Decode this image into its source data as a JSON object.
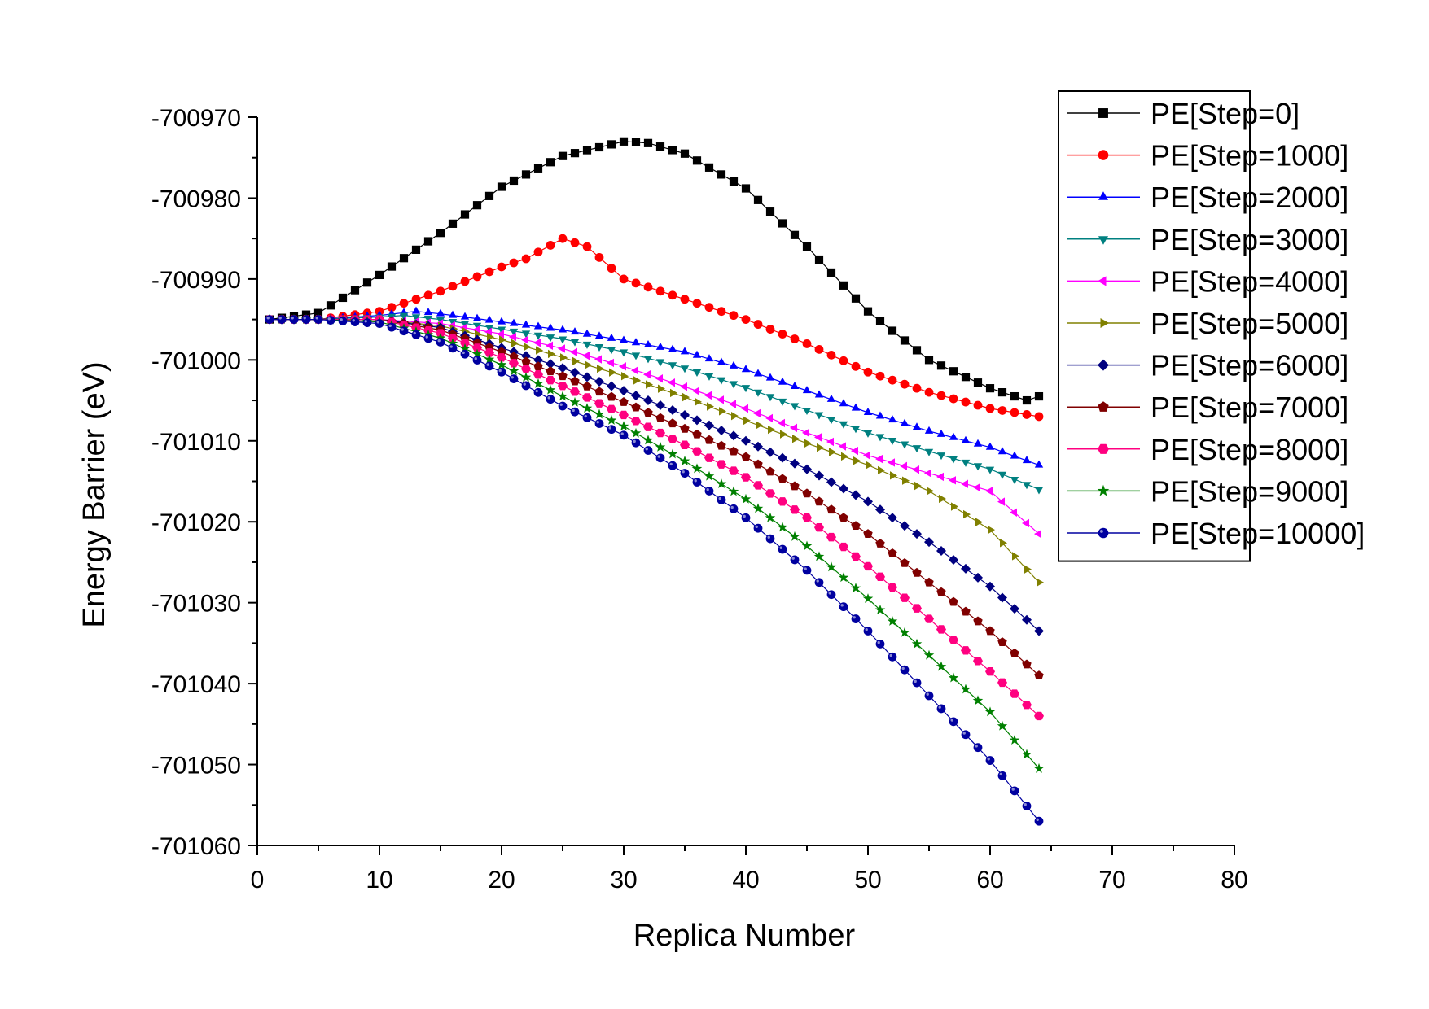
{
  "chart_data": {
    "type": "line",
    "title": "",
    "xlabel": "Replica Number",
    "ylabel": "Energy Barrier (eV)",
    "xlim": [
      0,
      80
    ],
    "ylim": [
      -701060,
      -700970
    ],
    "x_ticks": [
      "0",
      "10",
      "20",
      "30",
      "40",
      "50",
      "60",
      "70",
      "80"
    ],
    "y_ticks": [
      "-700970",
      "-700980",
      "-700990",
      "-701000",
      "-701010",
      "-701020",
      "-701030",
      "-701040",
      "-701050",
      "-701060"
    ],
    "grid": false,
    "legend_position": "top-right",
    "x_range": [
      1,
      64
    ],
    "series": [
      {
        "name": "PE[Step=0]",
        "color": "#000000",
        "marker": "square",
        "points": [
          [
            1,
            -700995
          ],
          [
            5,
            -700994.2
          ],
          [
            10,
            -700989.5
          ],
          [
            15,
            -700984.3
          ],
          [
            20,
            -700978.6
          ],
          [
            25,
            -700974.8
          ],
          [
            30,
            -700973
          ],
          [
            32,
            -700973.2
          ],
          [
            35,
            -700974.5
          ],
          [
            40,
            -700978.8
          ],
          [
            45,
            -700986
          ],
          [
            50,
            -700994
          ],
          [
            55,
            -701000
          ],
          [
            60,
            -701003.5
          ],
          [
            63,
            -701005
          ],
          [
            64,
            -701004.5
          ]
        ]
      },
      {
        "name": "PE[Step=1000]",
        "color": "#ff0000",
        "marker": "circle",
        "points": [
          [
            1,
            -700995
          ],
          [
            5,
            -700995
          ],
          [
            10,
            -700994
          ],
          [
            15,
            -700991.5
          ],
          [
            20,
            -700988.5
          ],
          [
            22,
            -700987.5
          ],
          [
            25,
            -700985
          ],
          [
            27,
            -700986
          ],
          [
            30,
            -700990
          ],
          [
            35,
            -700992.5
          ],
          [
            40,
            -700995
          ],
          [
            45,
            -700998
          ],
          [
            50,
            -701001.5
          ],
          [
            55,
            -701004
          ],
          [
            60,
            -701006
          ],
          [
            64,
            -701007
          ]
        ]
      },
      {
        "name": "PE[Step=2000]",
        "color": "#0000ff",
        "marker": "triangle-up",
        "points": [
          [
            1,
            -700995
          ],
          [
            5,
            -700995
          ],
          [
            10,
            -700994.5
          ],
          [
            13,
            -700994
          ],
          [
            15,
            -700994.3
          ],
          [
            20,
            -700995.3
          ],
          [
            25,
            -700996.3
          ],
          [
            30,
            -700997.6
          ],
          [
            35,
            -700999
          ],
          [
            40,
            -701001.2
          ],
          [
            45,
            -701003.8
          ],
          [
            50,
            -701006.5
          ],
          [
            55,
            -701008.8
          ],
          [
            60,
            -701010.8
          ],
          [
            64,
            -701013
          ]
        ]
      },
      {
        "name": "PE[Step=3000]",
        "color": "#008080",
        "marker": "triangle-down",
        "points": [
          [
            1,
            -700995
          ],
          [
            5,
            -700995
          ],
          [
            10,
            -700994.7
          ],
          [
            12,
            -700994.5
          ],
          [
            15,
            -700995
          ],
          [
            20,
            -700996.2
          ],
          [
            25,
            -700997.4
          ],
          [
            30,
            -700999
          ],
          [
            35,
            -701001
          ],
          [
            40,
            -701003.4
          ],
          [
            45,
            -701006.2
          ],
          [
            50,
            -701009
          ],
          [
            55,
            -701011.3
          ],
          [
            60,
            -701013.5
          ],
          [
            64,
            -701016
          ]
        ]
      },
      {
        "name": "PE[Step=4000]",
        "color": "#ff00ff",
        "marker": "triangle-left",
        "points": [
          [
            1,
            -700995
          ],
          [
            5,
            -700995
          ],
          [
            10,
            -700995
          ],
          [
            15,
            -700995.5
          ],
          [
            20,
            -700996.8
          ],
          [
            25,
            -700998.6
          ],
          [
            30,
            -701000.8
          ],
          [
            35,
            -701003.3
          ],
          [
            40,
            -701006
          ],
          [
            45,
            -701009
          ],
          [
            50,
            -701011.8
          ],
          [
            55,
            -701014
          ],
          [
            60,
            -701016.2
          ],
          [
            64,
            -701021.5
          ]
        ]
      },
      {
        "name": "PE[Step=5000]",
        "color": "#808000",
        "marker": "triangle-right",
        "points": [
          [
            1,
            -700995
          ],
          [
            5,
            -700995
          ],
          [
            10,
            -700995
          ],
          [
            15,
            -700995.8
          ],
          [
            20,
            -700997.5
          ],
          [
            25,
            -700999.7
          ],
          [
            30,
            -701002
          ],
          [
            35,
            -701004.6
          ],
          [
            40,
            -701007.5
          ],
          [
            45,
            -701010.3
          ],
          [
            50,
            -701013
          ],
          [
            55,
            -701016.2
          ],
          [
            60,
            -701021
          ],
          [
            64,
            -701027.5
          ]
        ]
      },
      {
        "name": "PE[Step=6000]",
        "color": "#000080",
        "marker": "diamond",
        "points": [
          [
            1,
            -700995
          ],
          [
            5,
            -700995
          ],
          [
            10,
            -700995
          ],
          [
            15,
            -700996
          ],
          [
            20,
            -700998.5
          ],
          [
            25,
            -701001
          ],
          [
            30,
            -701003.8
          ],
          [
            35,
            -701006.8
          ],
          [
            40,
            -701010
          ],
          [
            45,
            -701013.5
          ],
          [
            50,
            -701017.5
          ],
          [
            55,
            -701022.5
          ],
          [
            60,
            -701028
          ],
          [
            64,
            -701033.5
          ]
        ]
      },
      {
        "name": "PE[Step=7000]",
        "color": "#800000",
        "marker": "pentagon",
        "points": [
          [
            1,
            -700995
          ],
          [
            5,
            -700995
          ],
          [
            10,
            -700995
          ],
          [
            15,
            -700996.3
          ],
          [
            20,
            -700999
          ],
          [
            25,
            -701002
          ],
          [
            30,
            -701005.2
          ],
          [
            35,
            -701008.5
          ],
          [
            40,
            -701012
          ],
          [
            45,
            -701016.5
          ],
          [
            50,
            -701021.5
          ],
          [
            55,
            -701027.5
          ],
          [
            60,
            -701033.5
          ],
          [
            64,
            -701039
          ]
        ]
      },
      {
        "name": "PE[Step=8000]",
        "color": "#ff0080",
        "marker": "hexagon",
        "points": [
          [
            1,
            -700995
          ],
          [
            5,
            -700995
          ],
          [
            10,
            -700995
          ],
          [
            15,
            -700996.7
          ],
          [
            20,
            -700999.7
          ],
          [
            25,
            -701003.2
          ],
          [
            30,
            -701006.8
          ],
          [
            35,
            -701010.5
          ],
          [
            40,
            -701014.5
          ],
          [
            45,
            -701019.5
          ],
          [
            50,
            -701025.5
          ],
          [
            55,
            -701032
          ],
          [
            60,
            -701038.5
          ],
          [
            64,
            -701044
          ]
        ]
      },
      {
        "name": "PE[Step=9000]",
        "color": "#008000",
        "marker": "star",
        "points": [
          [
            1,
            -700995
          ],
          [
            5,
            -700995
          ],
          [
            10,
            -700995.3
          ],
          [
            15,
            -700997.3
          ],
          [
            20,
            -701000.6
          ],
          [
            25,
            -701004.5
          ],
          [
            30,
            -701008.2
          ],
          [
            35,
            -701012.5
          ],
          [
            40,
            -701017.2
          ],
          [
            45,
            -701023
          ],
          [
            50,
            -701029.5
          ],
          [
            55,
            -701036.5
          ],
          [
            60,
            -701043.5
          ],
          [
            64,
            -701050.5
          ]
        ]
      },
      {
        "name": "PE[Step=10000]",
        "color": "#0000a0",
        "marker": "sphere",
        "points": [
          [
            1,
            -700995
          ],
          [
            5,
            -700995
          ],
          [
            10,
            -700995.5
          ],
          [
            15,
            -700997.8
          ],
          [
            20,
            -701001.5
          ],
          [
            25,
            -701005.7
          ],
          [
            30,
            -701009.3
          ],
          [
            35,
            -701014
          ],
          [
            40,
            -701019.5
          ],
          [
            45,
            -701026
          ],
          [
            50,
            -701033.5
          ],
          [
            55,
            -701041.5
          ],
          [
            60,
            -701049.5
          ],
          [
            64,
            -701057
          ]
        ]
      }
    ]
  }
}
